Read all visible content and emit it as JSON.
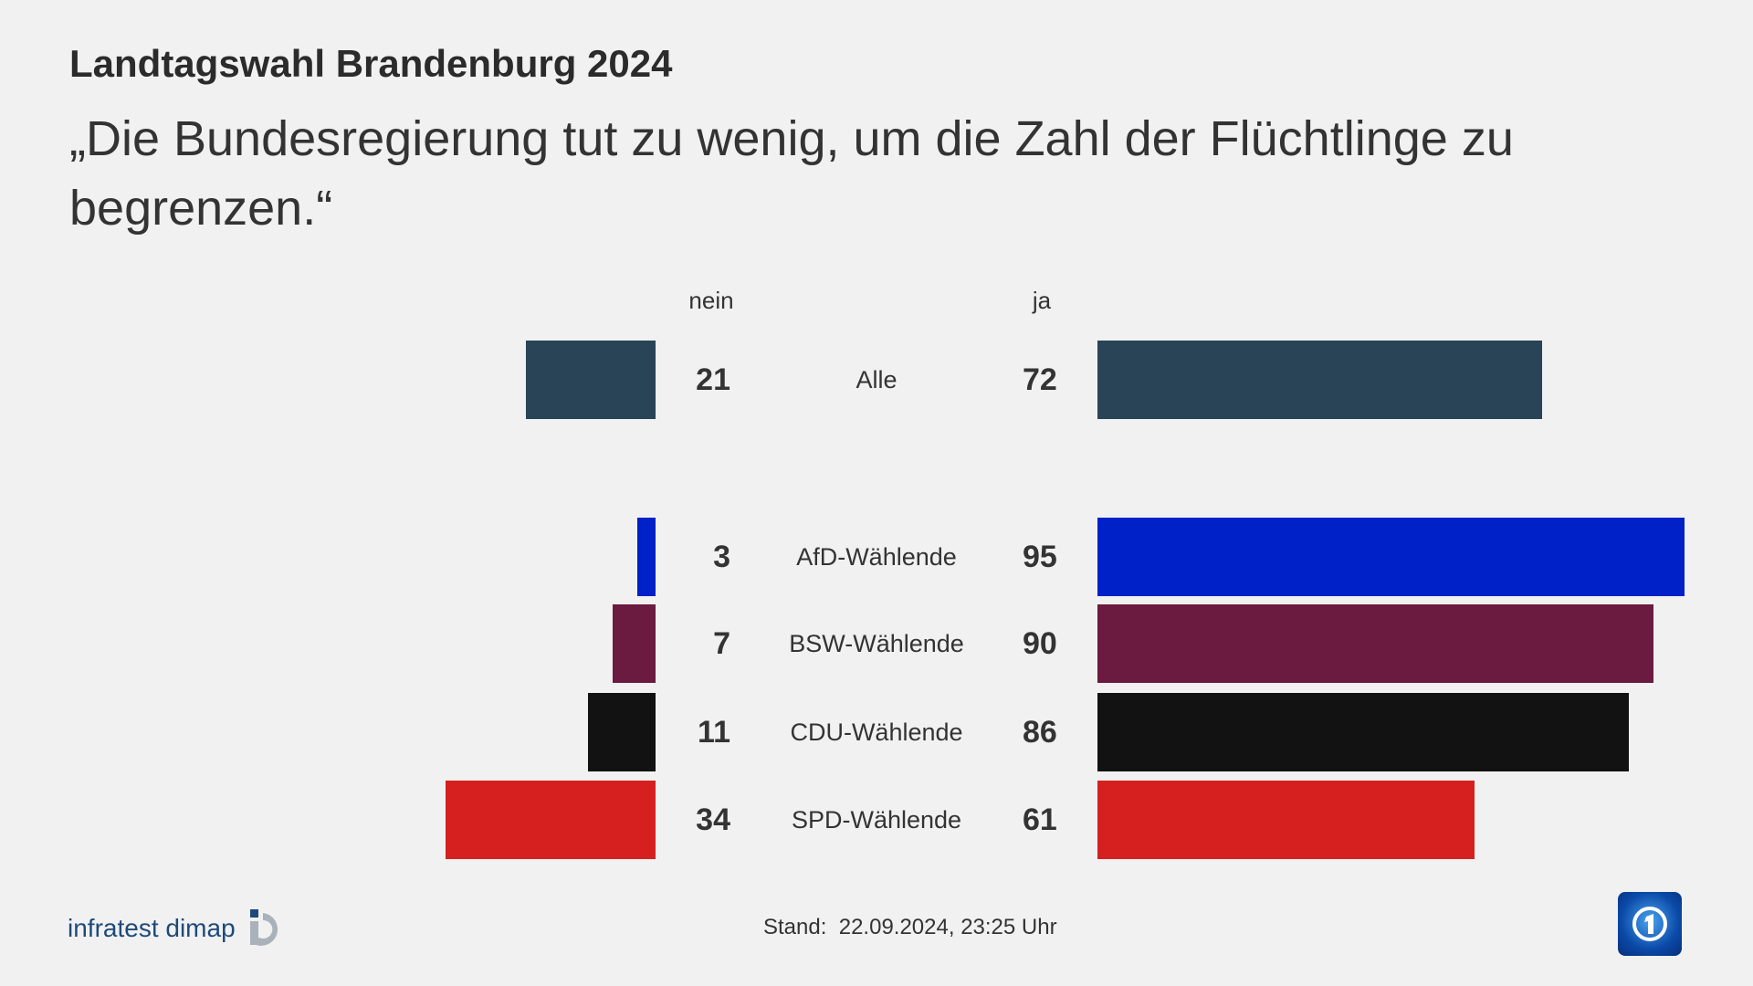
{
  "header": {
    "title": "Landtagswahl Brandenburg 2024",
    "subtitle": "„Die Bundesregierung tut zu wenig, um die Zahl der Flüchtlinge zu begrenzen.“"
  },
  "chart_data": {
    "type": "bar",
    "orientation": "horizontal-diverging",
    "column_labels": {
      "left": "nein",
      "right": "ja"
    },
    "categories": [
      "Alle",
      "AfD-Wählende",
      "BSW-Wählende",
      "CDU-Wählende",
      "SPD-Wählende"
    ],
    "series": [
      {
        "name": "nein",
        "values": [
          21,
          3,
          7,
          11,
          34
        ]
      },
      {
        "name": "ja",
        "values": [
          72,
          95,
          90,
          86,
          61
        ]
      }
    ],
    "colors": [
      "#284456",
      "#0021c8",
      "#6b1a40",
      "#121212",
      "#d61f1f"
    ],
    "unit": "%"
  },
  "footer": {
    "source": "infratest dimap",
    "stand_label": "Stand:",
    "stand_value": "22.09.2024, 23:25 Uhr",
    "broadcaster": "ARD"
  }
}
